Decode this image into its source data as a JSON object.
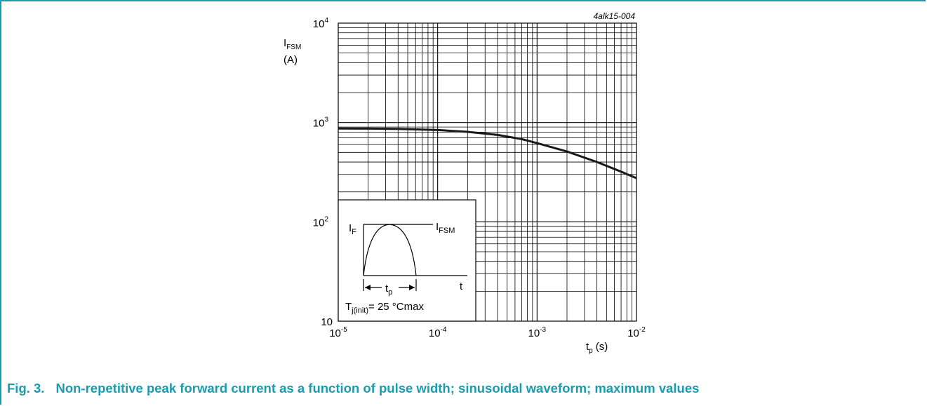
{
  "figure": {
    "id": "4alk15-004",
    "caption_number": "Fig. 3.",
    "caption_text": "Non-repetitive peak forward current as a function of pulse width; sinusoidal waveform; maximum values"
  },
  "chart_data": {
    "type": "line",
    "x_scale": "log",
    "y_scale": "log",
    "xlim": [
      1e-05,
      0.01
    ],
    "ylim": [
      10,
      10000
    ],
    "grid": true,
    "ylabel": {
      "main": "I",
      "sub": "FSM",
      "unit": "(A)"
    },
    "xlabel": {
      "main": "t",
      "sub": "p",
      "unit": "(s)"
    },
    "x_ticks": [
      {
        "base": "10",
        "exp": "-5"
      },
      {
        "base": "10",
        "exp": "-4"
      },
      {
        "base": "10",
        "exp": "-3"
      },
      {
        "base": "10",
        "exp": "-2"
      }
    ],
    "y_ticks": [
      {
        "base": "10",
        "exp": ""
      },
      {
        "base": "10",
        "exp": "2"
      },
      {
        "base": "10",
        "exp": "3"
      },
      {
        "base": "10",
        "exp": "4"
      }
    ],
    "series": [
      {
        "x": [
          1e-05,
          2e-05,
          4e-05,
          0.0001,
          0.0002,
          0.0004,
          0.0007,
          0.001,
          0.002,
          0.004,
          0.007,
          0.01
        ],
        "y": [
          870,
          868,
          860,
          840,
          805,
          750,
          680,
          620,
          510,
          400,
          320,
          275
        ]
      }
    ],
    "inset": {
      "if_label": {
        "main": "I",
        "sub": "F"
      },
      "ifsm_label": {
        "main": "I",
        "sub": "FSM"
      },
      "t_label": "t",
      "tp_label": {
        "main": "t",
        "sub": "p"
      },
      "tj_label": {
        "main": "T",
        "sub": "j(init)",
        "rest": "=  25 °Cmax"
      }
    }
  }
}
